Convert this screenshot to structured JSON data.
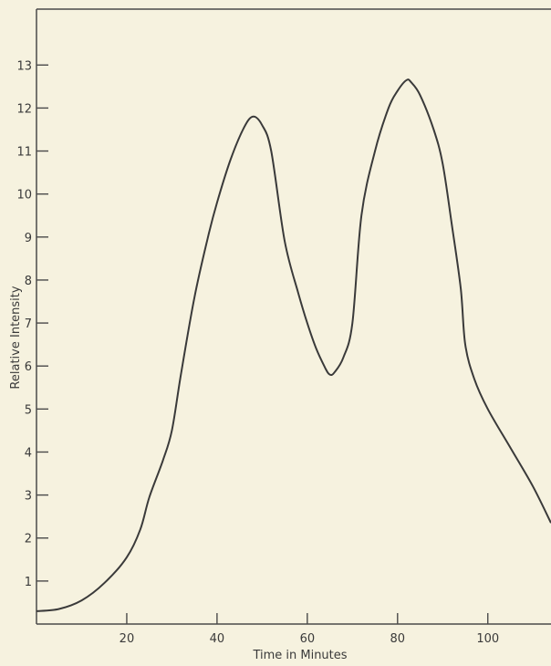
{
  "chart_data": {
    "type": "line",
    "title": "",
    "xlabel": "Time in Minutes",
    "ylabel": "Relative Intensity",
    "xlim": [
      0,
      114
    ],
    "ylim": [
      0,
      14.3
    ],
    "xticks": [
      20,
      40,
      60,
      80,
      100
    ],
    "xtick_labels": [
      "20",
      "40",
      "60",
      "80",
      "100"
    ],
    "yticks": [
      1,
      2,
      3,
      4,
      5,
      6,
      7,
      8,
      9,
      10,
      11,
      12,
      13
    ],
    "ytick_labels": [
      "1",
      "2",
      "3",
      "4",
      "5",
      "6",
      "7",
      "8",
      "9",
      "10",
      "11",
      "12",
      "13"
    ],
    "grid": false,
    "legend": "none",
    "series": [
      {
        "x": [
          0,
          5,
          10,
          15,
          20,
          23,
          25,
          28,
          30,
          32,
          35,
          38,
          40,
          43,
          46,
          48,
          50,
          52,
          55,
          58,
          60,
          62,
          64,
          65,
          66,
          68,
          70,
          72,
          75,
          78,
          80,
          82,
          83,
          85,
          88,
          90,
          92,
          94,
          95,
          97,
          100,
          105,
          110,
          114
        ],
        "y": [
          0.3,
          0.35,
          0.55,
          0.95,
          1.55,
          2.2,
          2.95,
          3.8,
          4.5,
          5.8,
          7.6,
          9.0,
          9.8,
          10.8,
          11.55,
          11.8,
          11.6,
          11.0,
          8.9,
          7.7,
          7.0,
          6.4,
          5.95,
          5.8,
          5.85,
          6.2,
          7.0,
          9.5,
          11.0,
          12.0,
          12.4,
          12.65,
          12.6,
          12.3,
          11.5,
          10.7,
          9.3,
          7.8,
          6.5,
          5.7,
          5.0,
          4.1,
          3.2,
          2.35
        ]
      }
    ]
  }
}
